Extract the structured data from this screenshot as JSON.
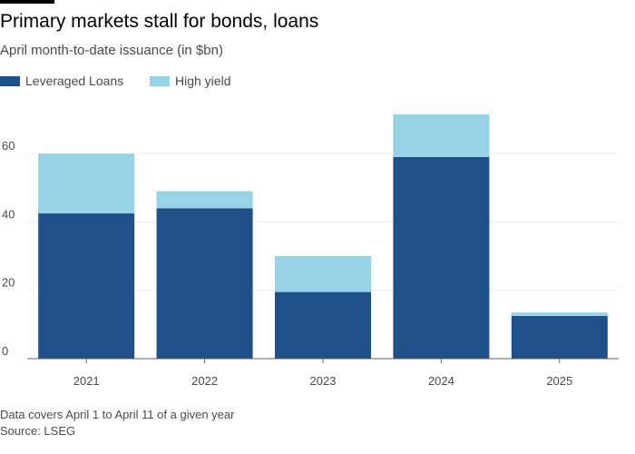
{
  "header": {
    "title": "Primary markets stall for bonds, loans",
    "subtitle": "April month-to-date issuance (in $bn)"
  },
  "footer": {
    "note": "Data covers April 1 to April 11 of a given year",
    "source": "Source: LSEG"
  },
  "colors": {
    "background": "#ffffff",
    "leveraged_loans": "#1e5089",
    "high_yield": "#96d3e6",
    "grid": "#eeeeee",
    "axis": "#66605c",
    "text": "#4d4845"
  },
  "chart_data": {
    "type": "bar",
    "stacked": true,
    "title": "Primary markets stall for bonds, loans",
    "subtitle": "April month-to-date issuance (in $bn)",
    "xlabel": "",
    "ylabel": "",
    "categories": [
      "2021",
      "2022",
      "2023",
      "2024",
      "2025"
    ],
    "series": [
      {
        "name": "Leveraged Loans",
        "color": "#1e5089",
        "values": [
          42.5,
          44,
          19.5,
          59,
          12.5
        ]
      },
      {
        "name": "High yield",
        "color": "#96d3e6",
        "values": [
          17.5,
          5,
          10.5,
          12.5,
          1
        ]
      }
    ],
    "ylim": [
      0,
      72
    ],
    "yticks": [
      0,
      20,
      40,
      60
    ],
    "grid": true,
    "legend": "top-left"
  }
}
